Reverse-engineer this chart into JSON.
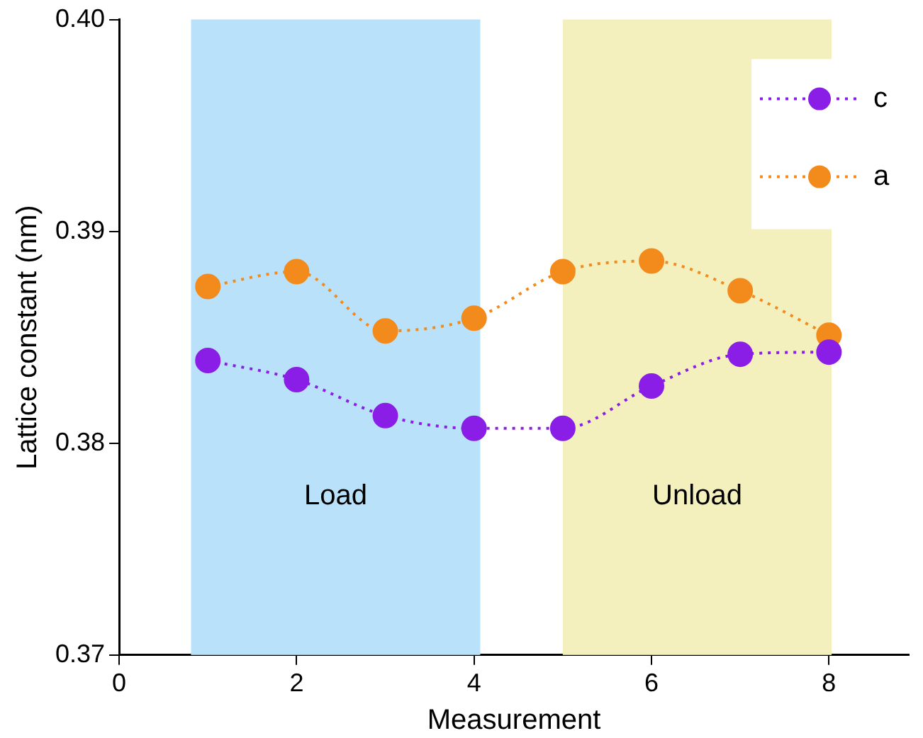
{
  "chart_data": {
    "type": "line",
    "xlabel": "Measurement",
    "ylabel": "Lattice constant (nm)",
    "xlim": [
      0,
      8.9
    ],
    "xticks": [
      0,
      2,
      4,
      6,
      8
    ],
    "ylim": [
      0.37,
      0.4
    ],
    "yticks": [
      {
        "value": 0.37,
        "label": "0.37"
      },
      {
        "value": 0.38,
        "label": "0.38"
      },
      {
        "value": 0.39,
        "label": "0.39"
      },
      {
        "value": 0.4,
        "label": "0.40"
      }
    ],
    "x": [
      1,
      2,
      3,
      4,
      5,
      6,
      7,
      8
    ],
    "series": [
      {
        "name": "c",
        "color": "#8a1ee6",
        "values": [
          0.3839,
          0.383,
          0.3813,
          0.3807,
          0.3807,
          0.3827,
          0.3842,
          0.3843
        ]
      },
      {
        "name": "a",
        "color": "#f38a1c",
        "values": [
          0.3874,
          0.3881,
          0.3853,
          0.3859,
          0.3881,
          0.3886,
          0.3872,
          0.3851
        ]
      }
    ],
    "bands": [
      {
        "axis": "x",
        "from": 0.81,
        "to": 4.07,
        "label": "Load",
        "color": "#b9e2fa"
      },
      {
        "axis": "x",
        "from": 5.0,
        "to": 8.03,
        "label": "Unload",
        "color": "#f4f0bd"
      }
    ],
    "marker": "circle",
    "line_style": "dotted",
    "legend": "top right",
    "grid": false
  }
}
